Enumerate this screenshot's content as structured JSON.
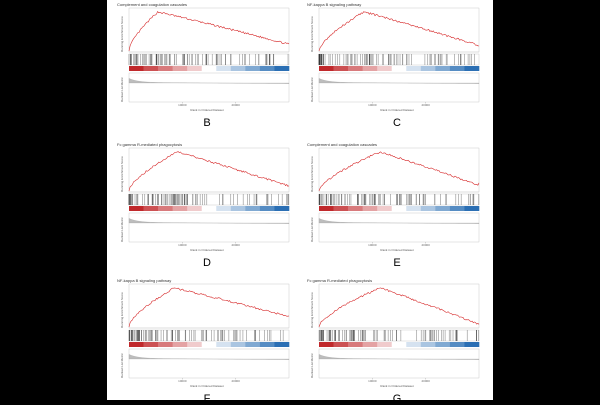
{
  "figure": {
    "panel_letters": [
      "B",
      "C",
      "D",
      "E",
      "F",
      "G"
    ]
  },
  "chart_data": [
    {
      "type": "line",
      "letter": "B",
      "title": "Complement and coagulation cascades",
      "ylabel": "Running Enrichment Score",
      "ylabel2": "Ranked List Metric",
      "xlabel": "Rank in Ordered Dataset",
      "xticks": [
        "10000",
        "20000"
      ],
      "peak_fraction": 0.18,
      "end_score_fraction": 0.15,
      "hit_density": "top"
    },
    {
      "type": "line",
      "letter": "C",
      "title": "NF-kappa B signaling pathway",
      "ylabel": "Running Enrichment Score",
      "ylabel2": "Ranked List Metric",
      "xlabel": "Rank in Ordered Dataset",
      "xticks": [
        "10000",
        "20000"
      ],
      "peak_fraction": 0.28,
      "end_score_fraction": 0.12,
      "hit_density": "top"
    },
    {
      "type": "line",
      "letter": "D",
      "title": "Fc gamma R-mediated phagocytosis",
      "ylabel": "Running Enrichment Score",
      "ylabel2": "Ranked List Metric",
      "xlabel": "Rank in Ordered Dataset",
      "xticks": [
        "10000",
        "20000"
      ],
      "peak_fraction": 0.3,
      "end_score_fraction": 0.1,
      "hit_density": "top"
    },
    {
      "type": "line",
      "letter": "E",
      "title": "Complement and coagulation cascades",
      "ylabel": "Running Enrichment Score",
      "ylabel2": "Ranked List Metric",
      "xlabel": "Rank in Ordered Dataset",
      "xticks": [
        "10000",
        "20000"
      ],
      "peak_fraction": 0.38,
      "end_score_fraction": 0.12,
      "hit_density": "top"
    },
    {
      "type": "line",
      "letter": "F",
      "title": "NF-kappa B signaling pathway",
      "ylabel": "Running Enrichment Score",
      "ylabel2": "Ranked List Metric",
      "xlabel": "Rank in Ordered Dataset",
      "xticks": [
        "10000",
        "20000"
      ],
      "peak_fraction": 0.28,
      "end_score_fraction": 0.25,
      "hit_density": "top"
    },
    {
      "type": "line",
      "letter": "G",
      "title": "Fc gamma R-mediated phagocytosis",
      "ylabel": "Running Enrichment Score",
      "ylabel2": "Ranked List Metric",
      "xlabel": "Rank in Ordered Dataset",
      "xticks": [
        "10000",
        "20000"
      ],
      "peak_fraction": 0.38,
      "end_score_fraction": 0.05,
      "hit_density": "top"
    }
  ],
  "colors": {
    "curve": "#d62728",
    "hit": "#222222",
    "metric_fill": "#bdbdbd",
    "heat_pos": "#c0282b",
    "heat_neg": "#2b6fb4"
  }
}
